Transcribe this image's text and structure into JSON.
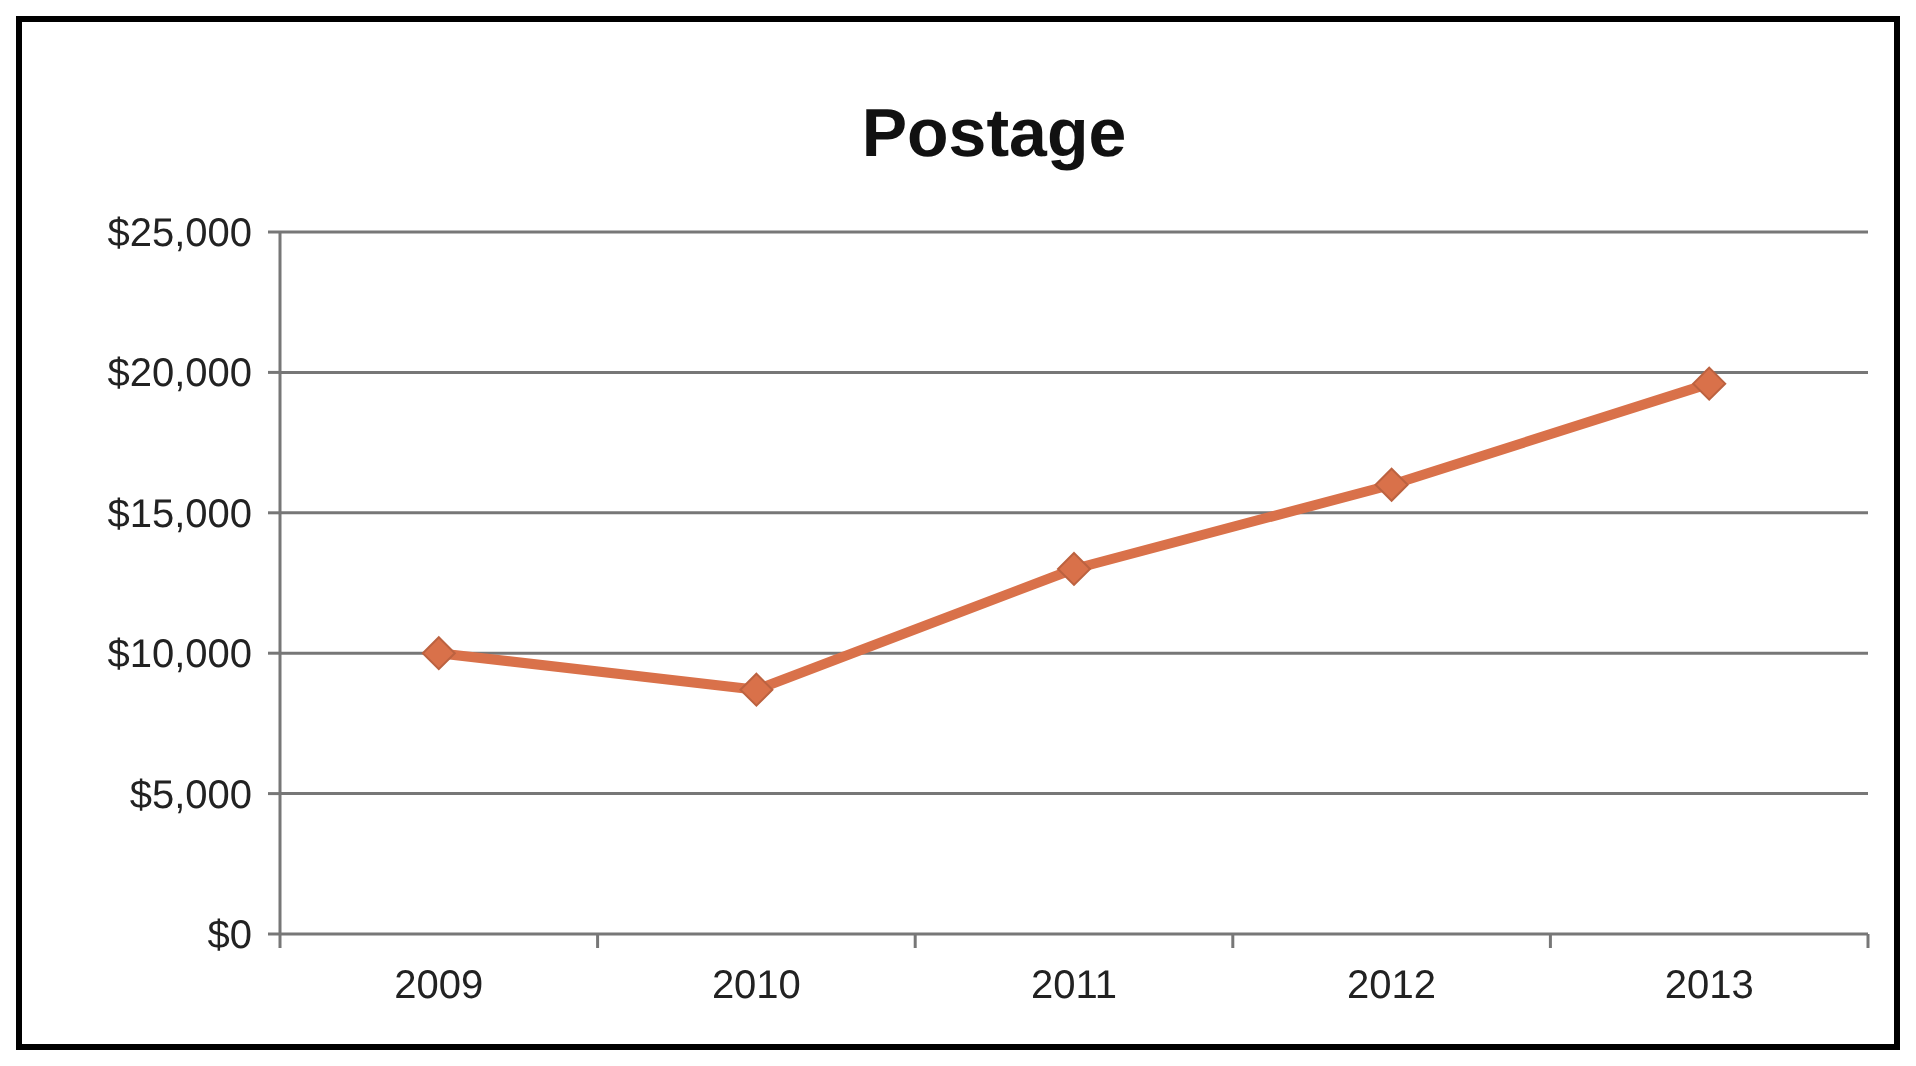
{
  "chart_data": {
    "type": "line",
    "title": "Postage",
    "categories": [
      "2009",
      "2010",
      "2011",
      "2012",
      "2013"
    ],
    "series": [
      {
        "color": "#d9714a",
        "values": [
          10000,
          8700,
          13000,
          16000,
          19600
        ]
      }
    ],
    "ylim": [
      0,
      25000
    ],
    "yticks": [
      {
        "value": 0,
        "label": "$0"
      },
      {
        "value": 5000,
        "label": "$5,000"
      },
      {
        "value": 10000,
        "label": "$10,000"
      },
      {
        "value": 15000,
        "label": "$15,000"
      },
      {
        "value": 20000,
        "label": "$20,000"
      },
      {
        "value": 25000,
        "label": "$25,000"
      }
    ],
    "grid": "y",
    "marker": "diamond",
    "line_style": "solid"
  }
}
